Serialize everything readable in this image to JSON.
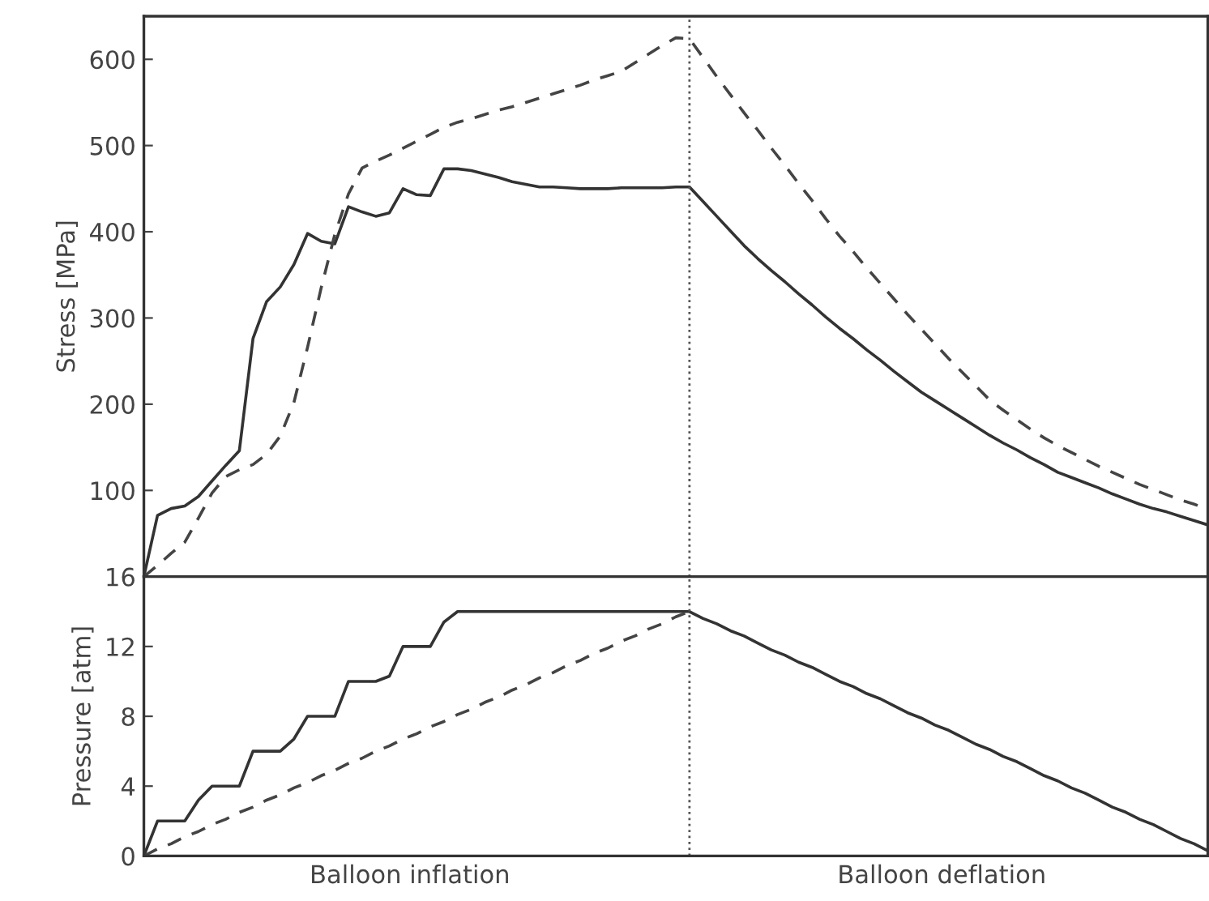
{
  "chart_data": [
    {
      "type": "line",
      "ylabel": "Stress [MPa]",
      "categories": [
        null,
        null,
        null,
        null,
        null,
        null,
        null,
        null,
        null,
        null,
        null,
        null,
        null,
        null,
        null,
        null,
        null,
        null,
        null,
        null,
        null,
        null,
        null,
        null,
        null,
        null,
        null,
        null,
        null,
        null,
        null,
        null,
        null,
        null,
        null,
        null,
        null,
        null,
        null,
        null,
        null,
        null,
        null,
        null,
        null,
        null,
        null,
        null,
        null,
        null,
        null,
        null,
        null,
        null,
        null,
        null,
        null,
        null,
        null,
        null,
        null,
        null,
        null,
        null,
        null,
        null,
        null,
        null,
        null,
        null,
        null,
        null,
        null,
        null,
        null,
        null,
        null,
        null,
        null
      ],
      "ylim": [
        0,
        650
      ],
      "yticks": [
        100,
        200,
        300,
        400,
        500,
        600
      ],
      "tick_labels": "y",
      "grid": false,
      "legend": false,
      "series": [
        {
          "color": "#333333",
          "line_style": "solid",
          "values": [
            0,
            71,
            79,
            82,
            93,
            111,
            129,
            146,
            276,
            319,
            336,
            362,
            398,
            389,
            386,
            429,
            423,
            418,
            422,
            450,
            443,
            442,
            473,
            473,
            471,
            467,
            463,
            458,
            455,
            452,
            452,
            451,
            450,
            450,
            450,
            451,
            451,
            451,
            451,
            452,
            452,
            435,
            418,
            401,
            384,
            369,
            355,
            342,
            328,
            315,
            301,
            288,
            276,
            263,
            251,
            238,
            226,
            214,
            204,
            194,
            184,
            174,
            164,
            155,
            147,
            138,
            130,
            121,
            115,
            109,
            103,
            96,
            90,
            84,
            79,
            75,
            70,
            65,
            60
          ]
        },
        {
          "color": "#444444",
          "line_style": "dashed",
          "values": [
            0,
            13,
            27,
            40,
            68,
            97,
            116,
            124,
            130,
            142,
            163,
            202,
            266,
            335,
            397,
            444,
            474,
            482,
            489,
            497,
            505,
            513,
            521,
            527,
            531,
            536,
            541,
            545,
            550,
            555,
            560,
            565,
            570,
            576,
            581,
            586,
            596,
            606,
            616,
            625,
            624,
            602,
            580,
            559,
            538,
            518,
            497,
            477,
            456,
            436,
            415,
            395,
            377,
            358,
            340,
            322,
            304,
            287,
            270,
            253,
            237,
            221,
            205,
            193,
            182,
            171,
            161,
            152,
            144,
            136,
            128,
            121,
            114,
            107,
            101,
            95,
            89,
            84,
            78
          ]
        }
      ]
    },
    {
      "type": "line",
      "ylabel": "Pressure [atm]",
      "categories": [
        null,
        null,
        null,
        null,
        null,
        null,
        null,
        null,
        null,
        null,
        null,
        null,
        null,
        null,
        null,
        null,
        null,
        null,
        null,
        null,
        null,
        null,
        null,
        null,
        null,
        null,
        null,
        null,
        null,
        null,
        null,
        null,
        null,
        null,
        null,
        null,
        null,
        null,
        null,
        null,
        null,
        null,
        null,
        null,
        null,
        null,
        null,
        null,
        null,
        null,
        null,
        null,
        null,
        null,
        null,
        null,
        null,
        null,
        null,
        null,
        null,
        null,
        null,
        null,
        null,
        null,
        null,
        null,
        null,
        null,
        null,
        null,
        null,
        null,
        null,
        null,
        null,
        null,
        null
      ],
      "ylim": [
        0,
        16
      ],
      "yticks": [
        0,
        4,
        8,
        12,
        16
      ],
      "tick_labels": "y",
      "grid": false,
      "legend": false,
      "annotations": [
        "Balloon inflation",
        "Balloon deflation"
      ],
      "series": [
        {
          "color": "#333333",
          "line_style": "solid",
          "values": [
            0,
            2,
            2,
            2,
            3.2,
            4,
            4,
            4,
            6,
            6,
            6,
            6.7,
            8,
            8,
            8,
            10,
            10,
            10,
            10.3,
            12,
            12,
            12,
            13.4,
            14,
            14,
            14,
            14,
            14,
            14,
            14,
            14,
            14,
            14,
            14,
            14,
            14,
            14,
            14,
            14,
            14,
            14,
            13.6,
            13.3,
            12.9,
            12.6,
            12.2,
            11.8,
            11.5,
            11.1,
            10.8,
            10.4,
            10.0,
            9.7,
            9.3,
            9.0,
            8.6,
            8.2,
            7.9,
            7.5,
            7.2,
            6.8,
            6.4,
            6.1,
            5.7,
            5.4,
            5.0,
            4.6,
            4.3,
            3.9,
            3.6,
            3.2,
            2.8,
            2.5,
            2.1,
            1.8,
            1.4,
            1.0,
            0.7,
            0.3
          ]
        },
        {
          "color": "#444444",
          "line_style": "dashed",
          "values": [
            0,
            0.4,
            0.7,
            1.1,
            1.4,
            1.8,
            2.1,
            2.5,
            2.8,
            3.2,
            3.5,
            3.9,
            4.2,
            4.6,
            4.9,
            5.3,
            5.6,
            6.0,
            6.3,
            6.7,
            7.0,
            7.4,
            7.7,
            8.1,
            8.4,
            8.8,
            9.1,
            9.5,
            9.8,
            10.2,
            10.5,
            10.9,
            11.2,
            11.6,
            11.9,
            12.3,
            12.6,
            13.0,
            13.3,
            13.7,
            14.0,
            null,
            null,
            null,
            null,
            null,
            null,
            null,
            null,
            null,
            null,
            null,
            null,
            null,
            null,
            null,
            null,
            null,
            null,
            null,
            null,
            null,
            null,
            null,
            null,
            null,
            null,
            null,
            null,
            null,
            null,
            null,
            null,
            null,
            null,
            null,
            null,
            null,
            null
          ]
        }
      ]
    }
  ]
}
